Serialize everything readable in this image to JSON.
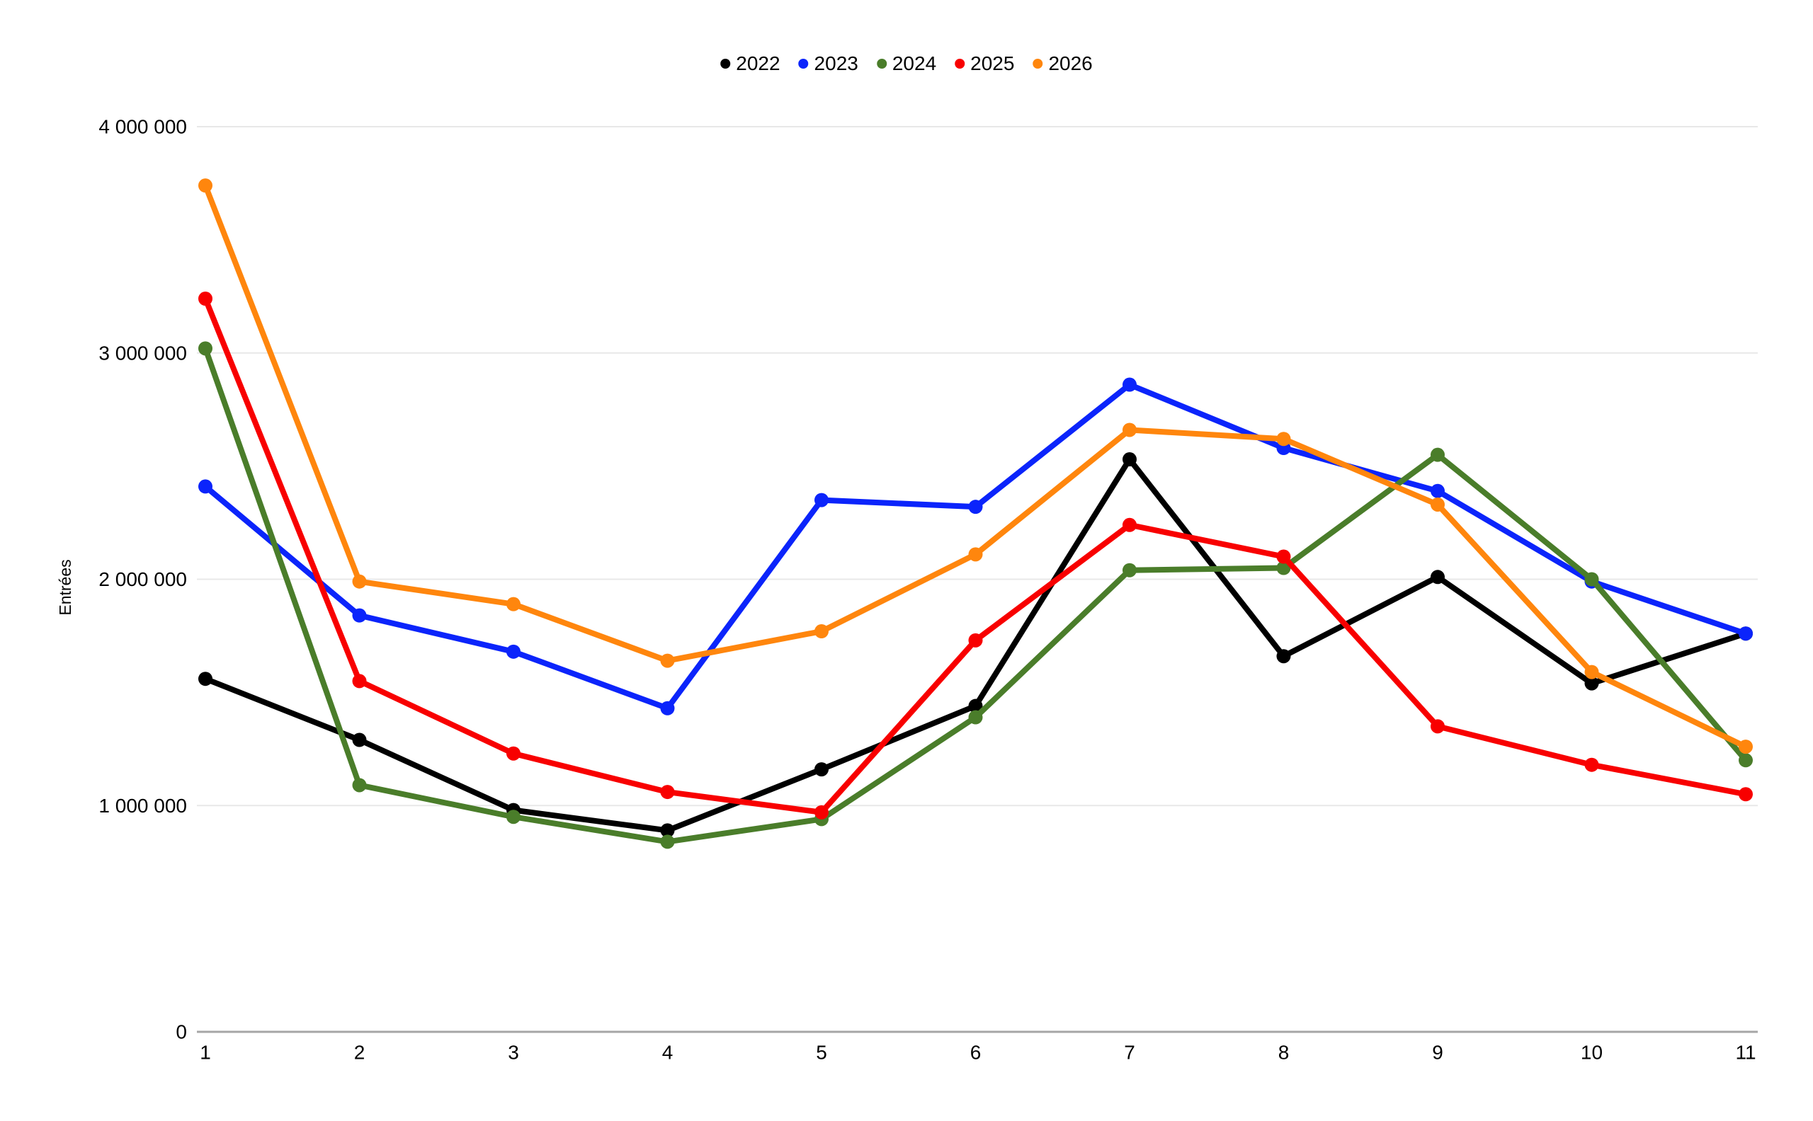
{
  "chart_data": {
    "type": "line",
    "title": "",
    "xlabel": "",
    "ylabel": "Entrées",
    "x": [
      1,
      2,
      3,
      4,
      5,
      6,
      7,
      8,
      9,
      10,
      11
    ],
    "ylim": [
      0,
      4000000
    ],
    "yticks": [
      0,
      1000000,
      2000000,
      3000000,
      4000000
    ],
    "ytick_labels": [
      "0",
      "1 000 000",
      "2 000 000",
      "3 000 000",
      "4 000 000"
    ],
    "grid": "horizontal",
    "legend_position": "top-center",
    "marker": "circle",
    "series": [
      {
        "name": "2022",
        "color": "#000000",
        "values": [
          1560000,
          1290000,
          980000,
          890000,
          1160000,
          1440000,
          2530000,
          1660000,
          2010000,
          1540000,
          1760000
        ]
      },
      {
        "name": "2023",
        "color": "#0b24fb",
        "values": [
          2410000,
          1840000,
          1680000,
          1430000,
          2350000,
          2320000,
          2860000,
          2580000,
          2390000,
          1990000,
          1760000
        ]
      },
      {
        "name": "2024",
        "color": "#4a7d2a",
        "values": [
          3020000,
          1090000,
          950000,
          840000,
          940000,
          1390000,
          2040000,
          2050000,
          2550000,
          2000000,
          1200000
        ]
      },
      {
        "name": "2025",
        "color": "#f80000",
        "values": [
          3240000,
          1550000,
          1230000,
          1060000,
          970000,
          1730000,
          2240000,
          2100000,
          1350000,
          1180000,
          1050000
        ]
      },
      {
        "name": "2026",
        "color": "#ff860d",
        "values": [
          3740000,
          1990000,
          1890000,
          1640000,
          1770000,
          2110000,
          2660000,
          2620000,
          2330000,
          1590000,
          1260000
        ]
      }
    ],
    "colors": {
      "grid": "#e8e8e8",
      "axis": "#a6a6a6",
      "text": "#000000",
      "background": "#ffffff"
    }
  }
}
